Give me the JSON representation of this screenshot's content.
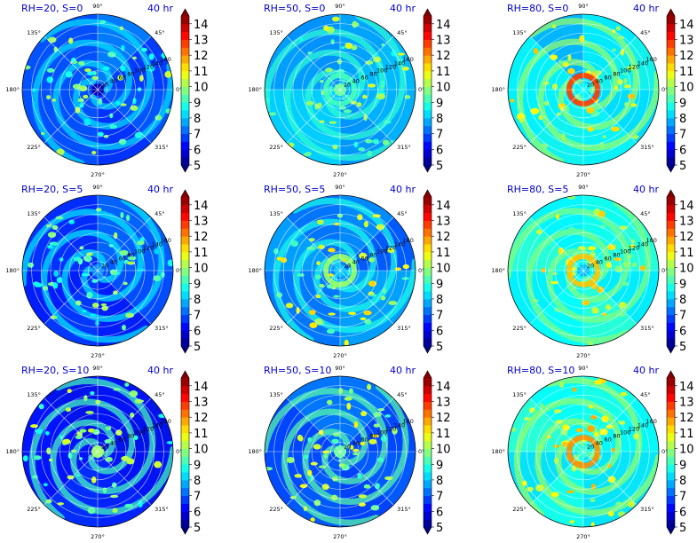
{
  "figure": {
    "time_label": "40 hr"
  },
  "chart_data": [
    {
      "type": "heatmap",
      "projection": "polar",
      "title": "RH=20, S=0",
      "time_label": "40 hr",
      "angular_ticks": [
        "90°",
        "45°",
        "0°",
        "315°",
        "270°",
        "225°",
        "180°",
        "135°"
      ],
      "radial_ticks": [
        "20",
        "40",
        "60",
        "80",
        "100",
        "120",
        "140",
        "160"
      ],
      "colorbar": {
        "ticks": [
          "5",
          "6",
          "7",
          "8",
          "9",
          "10",
          "11",
          "12",
          "13",
          "14"
        ],
        "min": 5,
        "max": 14.5,
        "extend": "both",
        "colormap": "jet"
      },
      "field": {
        "mean_level": 7.0,
        "core_level": 5.5,
        "ring_level": null,
        "spiral_level": 8.3,
        "wave_level": 9.0
      }
    },
    {
      "type": "heatmap",
      "projection": "polar",
      "title": "RH=50, S=0",
      "time_label": "40 hr",
      "angular_ticks": [
        "90°",
        "45°",
        "0°",
        "315°",
        "270°",
        "225°",
        "180°",
        "135°"
      ],
      "radial_ticks": [
        "20",
        "40",
        "60",
        "80",
        "100",
        "120",
        "140",
        "160"
      ],
      "colorbar": {
        "ticks": [
          "5",
          "6",
          "7",
          "8",
          "9",
          "10",
          "11",
          "12",
          "13",
          "14"
        ],
        "min": 5,
        "max": 14.5,
        "extend": "both",
        "colormap": "jet"
      },
      "field": {
        "mean_level": 7.8,
        "core_level": 9.5,
        "ring_level": 9.2,
        "spiral_level": 9.0,
        "wave_level": 9.2
      }
    },
    {
      "type": "heatmap",
      "projection": "polar",
      "title": "RH=80, S=0",
      "time_label": "40 hr",
      "angular_ticks": [
        "90°",
        "45°",
        "0°",
        "315°",
        "270°",
        "225°",
        "180°",
        "135°"
      ],
      "radial_ticks": [
        "20",
        "40",
        "60",
        "80",
        "100",
        "120",
        "140",
        "160"
      ],
      "colorbar": {
        "ticks": [
          "5",
          "6",
          "7",
          "8",
          "9",
          "10",
          "11",
          "12",
          "13",
          "14"
        ],
        "min": 5,
        "max": 14.5,
        "extend": "both",
        "colormap": "jet"
      },
      "field": {
        "mean_level": 8.3,
        "core_level": 8.5,
        "ring_level": 12.8,
        "spiral_level": 10.0,
        "wave_level": 10.0
      }
    },
    {
      "type": "heatmap",
      "projection": "polar",
      "title": "RH=20, S=5",
      "time_label": "40 hr",
      "angular_ticks": [
        "90°",
        "45°",
        "0°",
        "315°",
        "270°",
        "225°",
        "180°",
        "135°"
      ],
      "radial_ticks": [
        "20",
        "40",
        "60",
        "80",
        "100",
        "120",
        "140",
        "160"
      ],
      "colorbar": {
        "ticks": [
          "5",
          "6",
          "7",
          "8",
          "9",
          "10",
          "11",
          "12",
          "13",
          "14"
        ],
        "min": 5,
        "max": 14.5,
        "extend": "both",
        "colormap": "jet"
      },
      "field": {
        "mean_level": 6.8,
        "core_level": 7.5,
        "ring_level": null,
        "spiral_level": 8.4,
        "wave_level": 8.8
      }
    },
    {
      "type": "heatmap",
      "projection": "polar",
      "title": "RH=50, S=5",
      "time_label": "40 hr",
      "angular_ticks": [
        "90°",
        "45°",
        "0°",
        "315°",
        "270°",
        "225°",
        "180°",
        "135°"
      ],
      "radial_ticks": [
        "20",
        "40",
        "60",
        "80",
        "100",
        "120",
        "140",
        "160"
      ],
      "colorbar": {
        "ticks": [
          "5",
          "6",
          "7",
          "8",
          "9",
          "10",
          "11",
          "12",
          "13",
          "14"
        ],
        "min": 5,
        "max": 14.5,
        "extend": "both",
        "colormap": "jet"
      },
      "field": {
        "mean_level": 7.4,
        "core_level": 8.0,
        "ring_level": 10.0,
        "spiral_level": 8.8,
        "wave_level": 9.8
      }
    },
    {
      "type": "heatmap",
      "projection": "polar",
      "title": "RH=80, S=5",
      "time_label": "40 hr",
      "angular_ticks": [
        "90°",
        "45°",
        "0°",
        "315°",
        "270°",
        "225°",
        "180°",
        "135°"
      ],
      "radial_ticks": [
        "20",
        "40",
        "60",
        "80",
        "100",
        "120",
        "140",
        "160"
      ],
      "colorbar": {
        "ticks": [
          "5",
          "6",
          "7",
          "8",
          "9",
          "10",
          "11",
          "12",
          "13",
          "14"
        ],
        "min": 5,
        "max": 14.5,
        "extend": "both",
        "colormap": "jet"
      },
      "field": {
        "mean_level": 8.6,
        "core_level": 8.0,
        "ring_level": 11.5,
        "spiral_level": 9.8,
        "wave_level": 10.0
      }
    },
    {
      "type": "heatmap",
      "projection": "polar",
      "title": "RH=20, S=10",
      "time_label": "40 hr",
      "angular_ticks": [
        "90°",
        "45°",
        "0°",
        "315°",
        "270°",
        "225°",
        "180°",
        "135°"
      ],
      "radial_ticks": [
        "20",
        "40",
        "60",
        "80",
        "100",
        "120",
        "140",
        "160"
      ],
      "colorbar": {
        "ticks": [
          "5",
          "6",
          "7",
          "8",
          "9",
          "10",
          "11",
          "12",
          "13",
          "14"
        ],
        "min": 5,
        "max": 14.5,
        "extend": "both",
        "colormap": "jet"
      },
      "field": {
        "mean_level": 6.6,
        "core_level": 10.0,
        "ring_level": null,
        "spiral_level": 9.2,
        "wave_level": 9.2
      }
    },
    {
      "type": "heatmap",
      "projection": "polar",
      "title": "RH=50, S=10",
      "time_label": "40 hr",
      "angular_ticks": [
        "90°",
        "45°",
        "0°",
        "315°",
        "270°",
        "225°",
        "180°",
        "135°"
      ],
      "radial_ticks": [
        "20",
        "40",
        "60",
        "80",
        "100",
        "120",
        "140",
        "160"
      ],
      "colorbar": {
        "ticks": [
          "5",
          "6",
          "7",
          "8",
          "9",
          "10",
          "11",
          "12",
          "13",
          "14"
        ],
        "min": 5,
        "max": 14.5,
        "extend": "both",
        "colormap": "jet"
      },
      "field": {
        "mean_level": 7.2,
        "core_level": 9.5,
        "ring_level": null,
        "spiral_level": 9.4,
        "wave_level": 9.6
      }
    },
    {
      "type": "heatmap",
      "projection": "polar",
      "title": "RH=80, S=10",
      "time_label": "40 hr",
      "angular_ticks": [
        "90°",
        "45°",
        "0°",
        "315°",
        "270°",
        "225°",
        "180°",
        "135°"
      ],
      "radial_ticks": [
        "20",
        "40",
        "60",
        "80",
        "100",
        "120",
        "140",
        "160"
      ],
      "colorbar": {
        "ticks": [
          "5",
          "6",
          "7",
          "8",
          "9",
          "10",
          "11",
          "12",
          "13",
          "14"
        ],
        "min": 5,
        "max": 14.5,
        "extend": "both",
        "colormap": "jet"
      },
      "field": {
        "mean_level": 8.7,
        "core_level": 9.0,
        "ring_level": 12.0,
        "spiral_level": 10.0,
        "wave_level": 10.2
      }
    }
  ]
}
